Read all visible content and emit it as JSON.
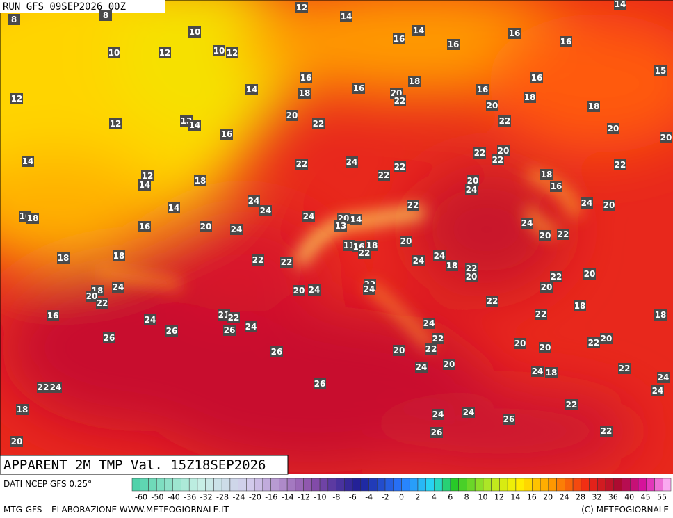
{
  "header": {
    "run": "RUN GFS 09SEP2026 00Z",
    "title": "APPARENT 2M TMP Val. 15Z18SEP2026"
  },
  "footer": {
    "source": "DATI NCEP GFS 0.25°",
    "credit": "MTG-GFS – ELABORAZIONE WWW.METEOGIORNALE.IT",
    "copyright": "(C) METEOGIORNALE"
  },
  "legend": {
    "labels": [
      -60,
      -50,
      -40,
      -36,
      -32,
      -28,
      -24,
      -20,
      -16,
      -14,
      -12,
      -10,
      -8,
      -6,
      -4,
      -2,
      0,
      2,
      4,
      6,
      8,
      10,
      12,
      14,
      16,
      20,
      24,
      28,
      32,
      36,
      40,
      45,
      55
    ]
  },
  "map": {
    "labels": [
      8,
      8,
      12,
      14,
      14,
      16,
      16,
      16,
      16,
      14,
      10,
      10,
      12,
      10,
      12,
      14,
      12,
      16,
      18,
      18,
      16,
      20,
      22,
      16,
      16,
      15,
      18,
      20,
      18,
      20,
      22,
      12,
      13,
      14,
      16,
      22,
      20,
      20,
      14,
      22,
      24,
      22,
      22,
      22,
      20,
      22,
      22,
      12,
      14,
      18,
      20,
      24,
      18,
      16,
      24,
      24,
      22,
      24,
      20,
      14,
      10,
      18,
      16,
      20,
      24,
      24,
      20,
      14,
      13,
      24,
      20,
      22,
      18,
      18,
      22,
      22,
      11,
      16,
      18,
      22,
      20,
      24,
      24,
      18,
      22,
      20,
      22,
      20,
      18,
      20,
      22,
      24,
      20,
      24,
      22,
      24,
      20,
      22,
      18,
      16,
      24,
      26,
      21,
      22,
      26,
      24,
      22,
      18,
      24,
      26,
      22,
      22,
      20,
      20,
      22,
      20,
      26,
      20,
      20,
      24,
      22,
      24,
      18,
      24,
      26,
      22,
      24,
      24,
      18,
      22,
      24,
      24,
      26,
      26,
      22,
      20
    ]
  }
}
